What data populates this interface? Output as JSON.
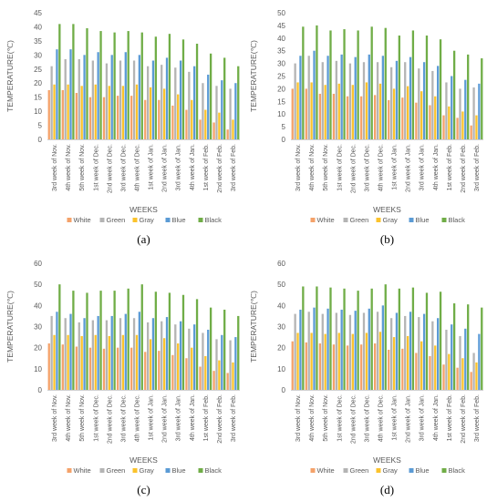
{
  "colors": {
    "White": "#f4a26a",
    "Green": "#b4b4b4",
    "Gray": "#fbc32c",
    "Blue": "#5b9bd5",
    "Black": "#70ad47"
  },
  "chart_data": [
    {
      "panel_label": "(a)",
      "type": "bar",
      "xlabel": "WEEKS",
      "ylabel": "TEMPERATURE(℃)",
      "ylim": [
        0,
        45
      ],
      "yticks": [
        0,
        5,
        10,
        15,
        20,
        25,
        30,
        35,
        40,
        45
      ],
      "grid": false,
      "legend": "bottom",
      "categories": [
        "3rd week of Nov.",
        "4th week of Nov.",
        "5th week of Nov.",
        "1st week of Dec.",
        "2nd week of Dec.",
        "3rd week of Dec.",
        "4th week of Dec.",
        "1st week of Jan.",
        "2nd week of Jan.",
        "3rd week of Jan.",
        "4th week of Jan.",
        "1st week of Feb.",
        "2nd week of Feb.",
        "3rd week of Feb."
      ],
      "series": [
        {
          "name": "White",
          "values": [
            17.5,
            17.5,
            16.5,
            15,
            15,
            15.5,
            15.5,
            14,
            14,
            12,
            10.5,
            7,
            6,
            3.5
          ]
        },
        {
          "name": "Green",
          "values": [
            26,
            28.5,
            28.5,
            28,
            27,
            28,
            28,
            26,
            26.5,
            25.5,
            24,
            20,
            19,
            18
          ]
        },
        {
          "name": "Gray",
          "values": [
            19.5,
            19.5,
            19,
            19.5,
            19,
            19,
            19.5,
            18.5,
            18,
            16,
            14,
            10.5,
            9.5,
            7
          ]
        },
        {
          "name": "Blue",
          "values": [
            32,
            32,
            30,
            31,
            30,
            31,
            30,
            28,
            29,
            28,
            26,
            23,
            21,
            20
          ]
        },
        {
          "name": "Black",
          "values": [
            41,
            41,
            39.5,
            38.5,
            38,
            38.5,
            38,
            36.5,
            37.5,
            35.5,
            34,
            30.5,
            29,
            26
          ]
        }
      ]
    },
    {
      "panel_label": "(b)",
      "type": "bar",
      "xlabel": "WEEKS",
      "ylabel": "TEMPERATURE(℃)",
      "ylim": [
        0,
        50
      ],
      "yticks": [
        0,
        5,
        10,
        15,
        20,
        25,
        30,
        35,
        40,
        45,
        50
      ],
      "grid": false,
      "legend": "bottom",
      "categories": [
        "3rd week of Nov.",
        "4th week of Nov.",
        "5th week of Nov.",
        "1st week of Dec.",
        "2nd week of Dec.",
        "3rd week of Dec.",
        "4th week of Dec.",
        "1st week of Jan.",
        "2nd week of Jan.",
        "3rd week of Jan.",
        "4th week of Jan.",
        "1st week of Feb.",
        "2nd week of Feb.",
        "3rd week of Feb."
      ],
      "series": [
        {
          "name": "White",
          "values": [
            20,
            20,
            18,
            18,
            17,
            17,
            17.5,
            15.5,
            16.5,
            14.5,
            13.5,
            9.5,
            8.5,
            5.5
          ]
        },
        {
          "name": "Green",
          "values": [
            30,
            33,
            30.5,
            31,
            30,
            30.5,
            30.5,
            28.5,
            30.5,
            28,
            27,
            22.5,
            20,
            20.5
          ]
        },
        {
          "name": "Gray",
          "values": [
            22.5,
            22.5,
            21.5,
            22,
            21.5,
            22.5,
            22,
            20,
            21,
            19,
            17,
            13,
            11,
            9.5
          ]
        },
        {
          "name": "Blue",
          "values": [
            33,
            35,
            33,
            33.5,
            32.5,
            33.5,
            33,
            31,
            32.5,
            30.5,
            29,
            25,
            23.5,
            22
          ]
        },
        {
          "name": "Black",
          "values": [
            44.5,
            45,
            43,
            43.5,
            43,
            44.5,
            44,
            41,
            43,
            41,
            39.5,
            35,
            33.5,
            32
          ]
        }
      ]
    },
    {
      "panel_label": "(c)",
      "type": "bar",
      "xlabel": "WEEKS",
      "ylabel": "TEMPERATURE(℃)",
      "ylim": [
        0,
        60
      ],
      "yticks": [
        0,
        10,
        20,
        30,
        40,
        50,
        60
      ],
      "grid": false,
      "legend": "bottom",
      "categories": [
        "3rd week of Nov.",
        "4th week of Nov.",
        "5th week of Nov.",
        "1st week of Dec.",
        "2nd week of Dec.",
        "3rd week of Dec.",
        "4th week of Dec.",
        "1st week of Jan.",
        "2nd week of Jan.",
        "3rd week of Jan.",
        "4th week of Jan.",
        "1st week of Feb.",
        "2nd week of Feb.",
        "3rd week of Feb."
      ],
      "series": [
        {
          "name": "White",
          "values": [
            22,
            21.5,
            20.5,
            20,
            19.5,
            20,
            20,
            18,
            18.5,
            16.5,
            15,
            11,
            9,
            8
          ]
        },
        {
          "name": "Green",
          "values": [
            35,
            34,
            32,
            33,
            33,
            34,
            34,
            32,
            32.5,
            31,
            29,
            27,
            24,
            23.5
          ]
        },
        {
          "name": "Gray",
          "values": [
            26,
            26,
            25.5,
            26,
            25.5,
            26,
            26,
            24,
            24.5,
            22,
            20,
            16,
            14,
            13
          ]
        },
        {
          "name": "Blue",
          "values": [
            37,
            36,
            34,
            35,
            35,
            36,
            37,
            34,
            34.5,
            32.5,
            31,
            28.5,
            26,
            25
          ]
        },
        {
          "name": "Black",
          "values": [
            50,
            47,
            46,
            47,
            47,
            48,
            50,
            46.5,
            46,
            45,
            43,
            39,
            38,
            35
          ]
        }
      ]
    },
    {
      "panel_label": "(d)",
      "type": "bar",
      "xlabel": "WEEKS",
      "ylabel": "TEMPERATURE(℃)",
      "ylim": [
        0,
        60
      ],
      "yticks": [
        0,
        10,
        20,
        30,
        40,
        50,
        60
      ],
      "grid": false,
      "legend": "bottom",
      "categories": [
        "3rd week of Nov.",
        "4th week of Nov.",
        "5th week of Nov.",
        "1st week of Dec.",
        "2nd week of Dec.",
        "3rd week of Dec.",
        "4th week of Dec.",
        "1st week of Jan.",
        "2nd week of Jan.",
        "3rd week of Jan.",
        "4th week of Jan.",
        "1st week of Feb.",
        "2nd week of Feb.",
        "3rd week of Feb."
      ],
      "series": [
        {
          "name": "White",
          "values": [
            23,
            22.5,
            22,
            21.5,
            21,
            21.5,
            22,
            19,
            19.5,
            17.5,
            16,
            12,
            10.5,
            8.5
          ]
        },
        {
          "name": "Green",
          "values": [
            36,
            37,
            36,
            36.5,
            35.5,
            36.5,
            37,
            34,
            35,
            34.5,
            32.5,
            28.5,
            25.5,
            17.5
          ]
        },
        {
          "name": "Gray",
          "values": [
            27,
            27,
            26.5,
            27,
            26.5,
            27,
            27.5,
            25,
            25.5,
            23,
            21,
            17,
            15,
            13
          ]
        },
        {
          "name": "Blue",
          "values": [
            38,
            39,
            38.5,
            38,
            37.5,
            38.5,
            40,
            36.5,
            37,
            36,
            34,
            31,
            29,
            26.5
          ]
        },
        {
          "name": "Black",
          "values": [
            49,
            49,
            48.5,
            48,
            47,
            48,
            50,
            48,
            48.5,
            46,
            46.5,
            41,
            40.5,
            39
          ]
        }
      ]
    }
  ]
}
